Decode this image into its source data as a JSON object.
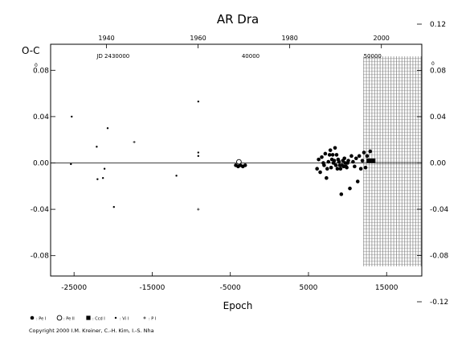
{
  "chart_data": {
    "type": "scatter",
    "title": "AR Dra",
    "ylabel": "O-C",
    "xlabel": "Epoch",
    "xlim": [
      -28000,
      19500
    ],
    "ylim": [
      -0.14,
      0.14
    ],
    "x_ticks": [
      -25000,
      -15000,
      -5000,
      5000,
      15000
    ],
    "x_tick_labels": [
      "-25000",
      "-15000",
      "-5000",
      "5000",
      "15000"
    ],
    "y_left_ticks": [
      -0.08,
      -0.04,
      0.0,
      0.04,
      0.08
    ],
    "y_left_tick_labels": [
      "-0.08",
      "-0.04",
      "0.00",
      "0.04",
      "0.08"
    ],
    "y_right_ticks": [
      -0.12,
      -0.08,
      -0.04,
      0.0,
      0.04,
      0.08,
      0.12
    ],
    "y_right_tick_labels": [
      "-0.12",
      "-0.08",
      "-0.04",
      "0.00",
      "0.04",
      "0.08",
      "0.12"
    ],
    "y_left_top_label": "0",
    "y_right_top_label": "0",
    "top_year_labels": [
      {
        "epoch": -20850,
        "text": "1940"
      },
      {
        "epoch": -9130,
        "text": "1960"
      },
      {
        "epoch": 2600,
        "text": "1980"
      },
      {
        "epoch": 14330,
        "text": "2000"
      }
    ],
    "jd_labels": [
      {
        "epoch": -20000,
        "text": "JD 2430000"
      },
      {
        "epoch": -2400,
        "text": "40000"
      },
      {
        "epoch": 13200,
        "text": "50000"
      }
    ],
    "zero_line": 0,
    "hatched_region": [
      12000,
      19500
    ],
    "series": [
      {
        "name": ": Pe I",
        "marker": "filled-circle",
        "points": [
          [
            -4300,
            -0.002
          ],
          [
            -4000,
            -0.003
          ],
          [
            -3700,
            -0.002
          ],
          [
            -3400,
            -0.003
          ],
          [
            -3100,
            -0.002
          ],
          [
            6100,
            -0.005
          ],
          [
            6300,
            0.003
          ],
          [
            6500,
            -0.008
          ],
          [
            6700,
            0.005
          ],
          [
            6900,
            0.0
          ],
          [
            7000,
            -0.002
          ],
          [
            7150,
            0.008
          ],
          [
            7300,
            -0.013
          ],
          [
            7400,
            -0.005
          ],
          [
            7550,
            0.001
          ],
          [
            7700,
            0.007
          ],
          [
            7800,
            0.011
          ],
          [
            7900,
            -0.004
          ],
          [
            8000,
            0.003
          ],
          [
            8100,
            0.007
          ],
          [
            8200,
            0.0
          ],
          [
            8300,
            0.002
          ],
          [
            8400,
            0.013
          ],
          [
            8500,
            -0.002
          ],
          [
            8600,
            0.007
          ],
          [
            8700,
            -0.005
          ],
          [
            8800,
            0.003
          ],
          [
            8900,
            0.001
          ],
          [
            9000,
            -0.002
          ],
          [
            9100,
            -0.005
          ],
          [
            9200,
            -0.027
          ],
          [
            9300,
            -0.002
          ],
          [
            9400,
            0.002
          ],
          [
            9500,
            -0.003
          ],
          [
            9600,
            0.004
          ],
          [
            9700,
            0.0
          ],
          [
            9800,
            -0.003
          ],
          [
            9900,
            -0.004
          ],
          [
            10000,
            0.0
          ],
          [
            10100,
            0.002
          ],
          [
            10300,
            -0.022
          ],
          [
            10500,
            0.006
          ],
          [
            10700,
            0.001
          ],
          [
            10900,
            -0.003
          ],
          [
            11100,
            0.004
          ],
          [
            11300,
            -0.016
          ],
          [
            11500,
            0.006
          ],
          [
            11700,
            -0.005
          ],
          [
            11900,
            0.002
          ],
          [
            12100,
            0.009
          ],
          [
            12300,
            -0.004
          ],
          [
            12500,
            0.006
          ],
          [
            12700,
            0.002
          ],
          [
            12900,
            0.01
          ]
        ]
      },
      {
        "name": ": Pe II",
        "marker": "open-circle",
        "points": [
          [
            -3900,
            0.001
          ]
        ]
      },
      {
        "name": ": Ccd I",
        "marker": "filled-square",
        "points": [
          [
            12700,
            0.002
          ],
          [
            13000,
            0.002
          ],
          [
            13300,
            0.002
          ]
        ]
      },
      {
        "name": ": Vi I",
        "marker": "dot",
        "points": [
          [
            -25300,
            0.04
          ],
          [
            -25400,
            -0.001
          ],
          [
            -22100,
            0.014
          ],
          [
            -22000,
            -0.014
          ],
          [
            -21300,
            -0.013
          ],
          [
            -21100,
            -0.005
          ],
          [
            -20700,
            0.03
          ],
          [
            -19900,
            -0.038
          ],
          [
            -11900,
            -0.011
          ],
          [
            -9100,
            0.053
          ],
          [
            -9100,
            0.009
          ],
          [
            -9100,
            0.006
          ]
        ]
      },
      {
        "name": ": P I",
        "marker": "plus",
        "points": [
          [
            -17300,
            0.018
          ],
          [
            -9100,
            -0.04
          ]
        ]
      }
    ],
    "legend": [
      "Pe I",
      "Pe II",
      "Ccd I",
      "Vi I",
      "P I"
    ],
    "legend_placement": "bottom-left"
  },
  "legend_labels": [
    ": Pe I",
    ": Pe II",
    ": Ccd I",
    ": Vi I",
    ": P I"
  ],
  "copyright": "Copyright 2000 I.M. Kreiner, C.-H. Kim, I.-S. Nha"
}
